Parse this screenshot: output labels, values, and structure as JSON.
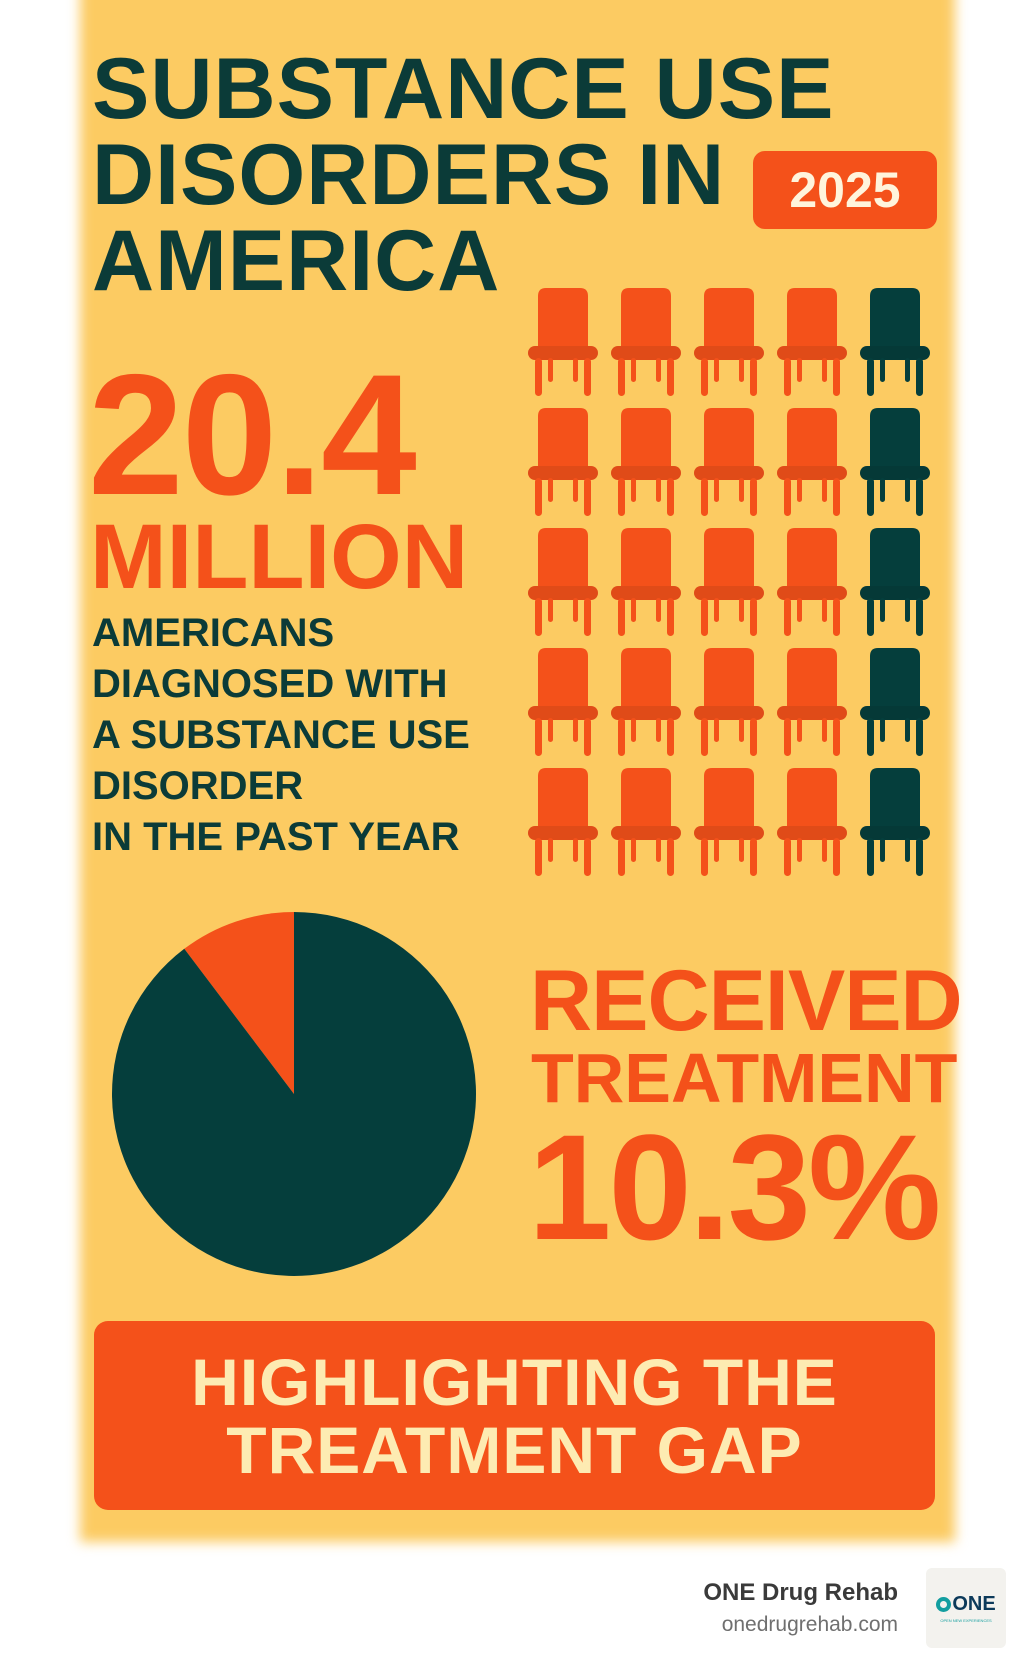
{
  "title": {
    "lines": [
      "SUBSTANCE USE",
      "DISORDERS IN",
      "AMERICA"
    ]
  },
  "year_badge": "2025",
  "headline_stat": {
    "value": "20.4",
    "unit": "MILLION",
    "description_lines": [
      "AMERICANS",
      "DIAGNOSED WITH",
      "A SUBSTANCE USE",
      "DISORDER",
      "IN THE PAST YEAR"
    ]
  },
  "chair_grid": {
    "rows": 5,
    "columns": 5,
    "dark_columns": [
      4
    ],
    "colors": {
      "orange": "#f4511a",
      "dark": "#053e3c"
    }
  },
  "treatment_stat": {
    "label_line1": "RECEIVED",
    "label_line2": "TREATMENT",
    "value": "10.3%"
  },
  "chart_data": {
    "type": "pie",
    "slices": [
      {
        "label": "Received treatment",
        "value": 10.3,
        "color": "#f4511a"
      },
      {
        "label": "Did not receive treatment",
        "value": 89.7,
        "color": "#053e3c"
      }
    ]
  },
  "banner": {
    "lines": [
      "HIGHLIGHTING THE",
      "TREATMENT GAP"
    ]
  },
  "footer": {
    "brand_name": "ONE Drug Rehab",
    "url": "onedrugrehab.com",
    "logo_text": "ONE",
    "logo_tagline": "OPEN NEW EXPERIENCES"
  },
  "colors": {
    "background": "#fccb62",
    "accent": "#f4511a",
    "dark": "#0b3b38"
  }
}
